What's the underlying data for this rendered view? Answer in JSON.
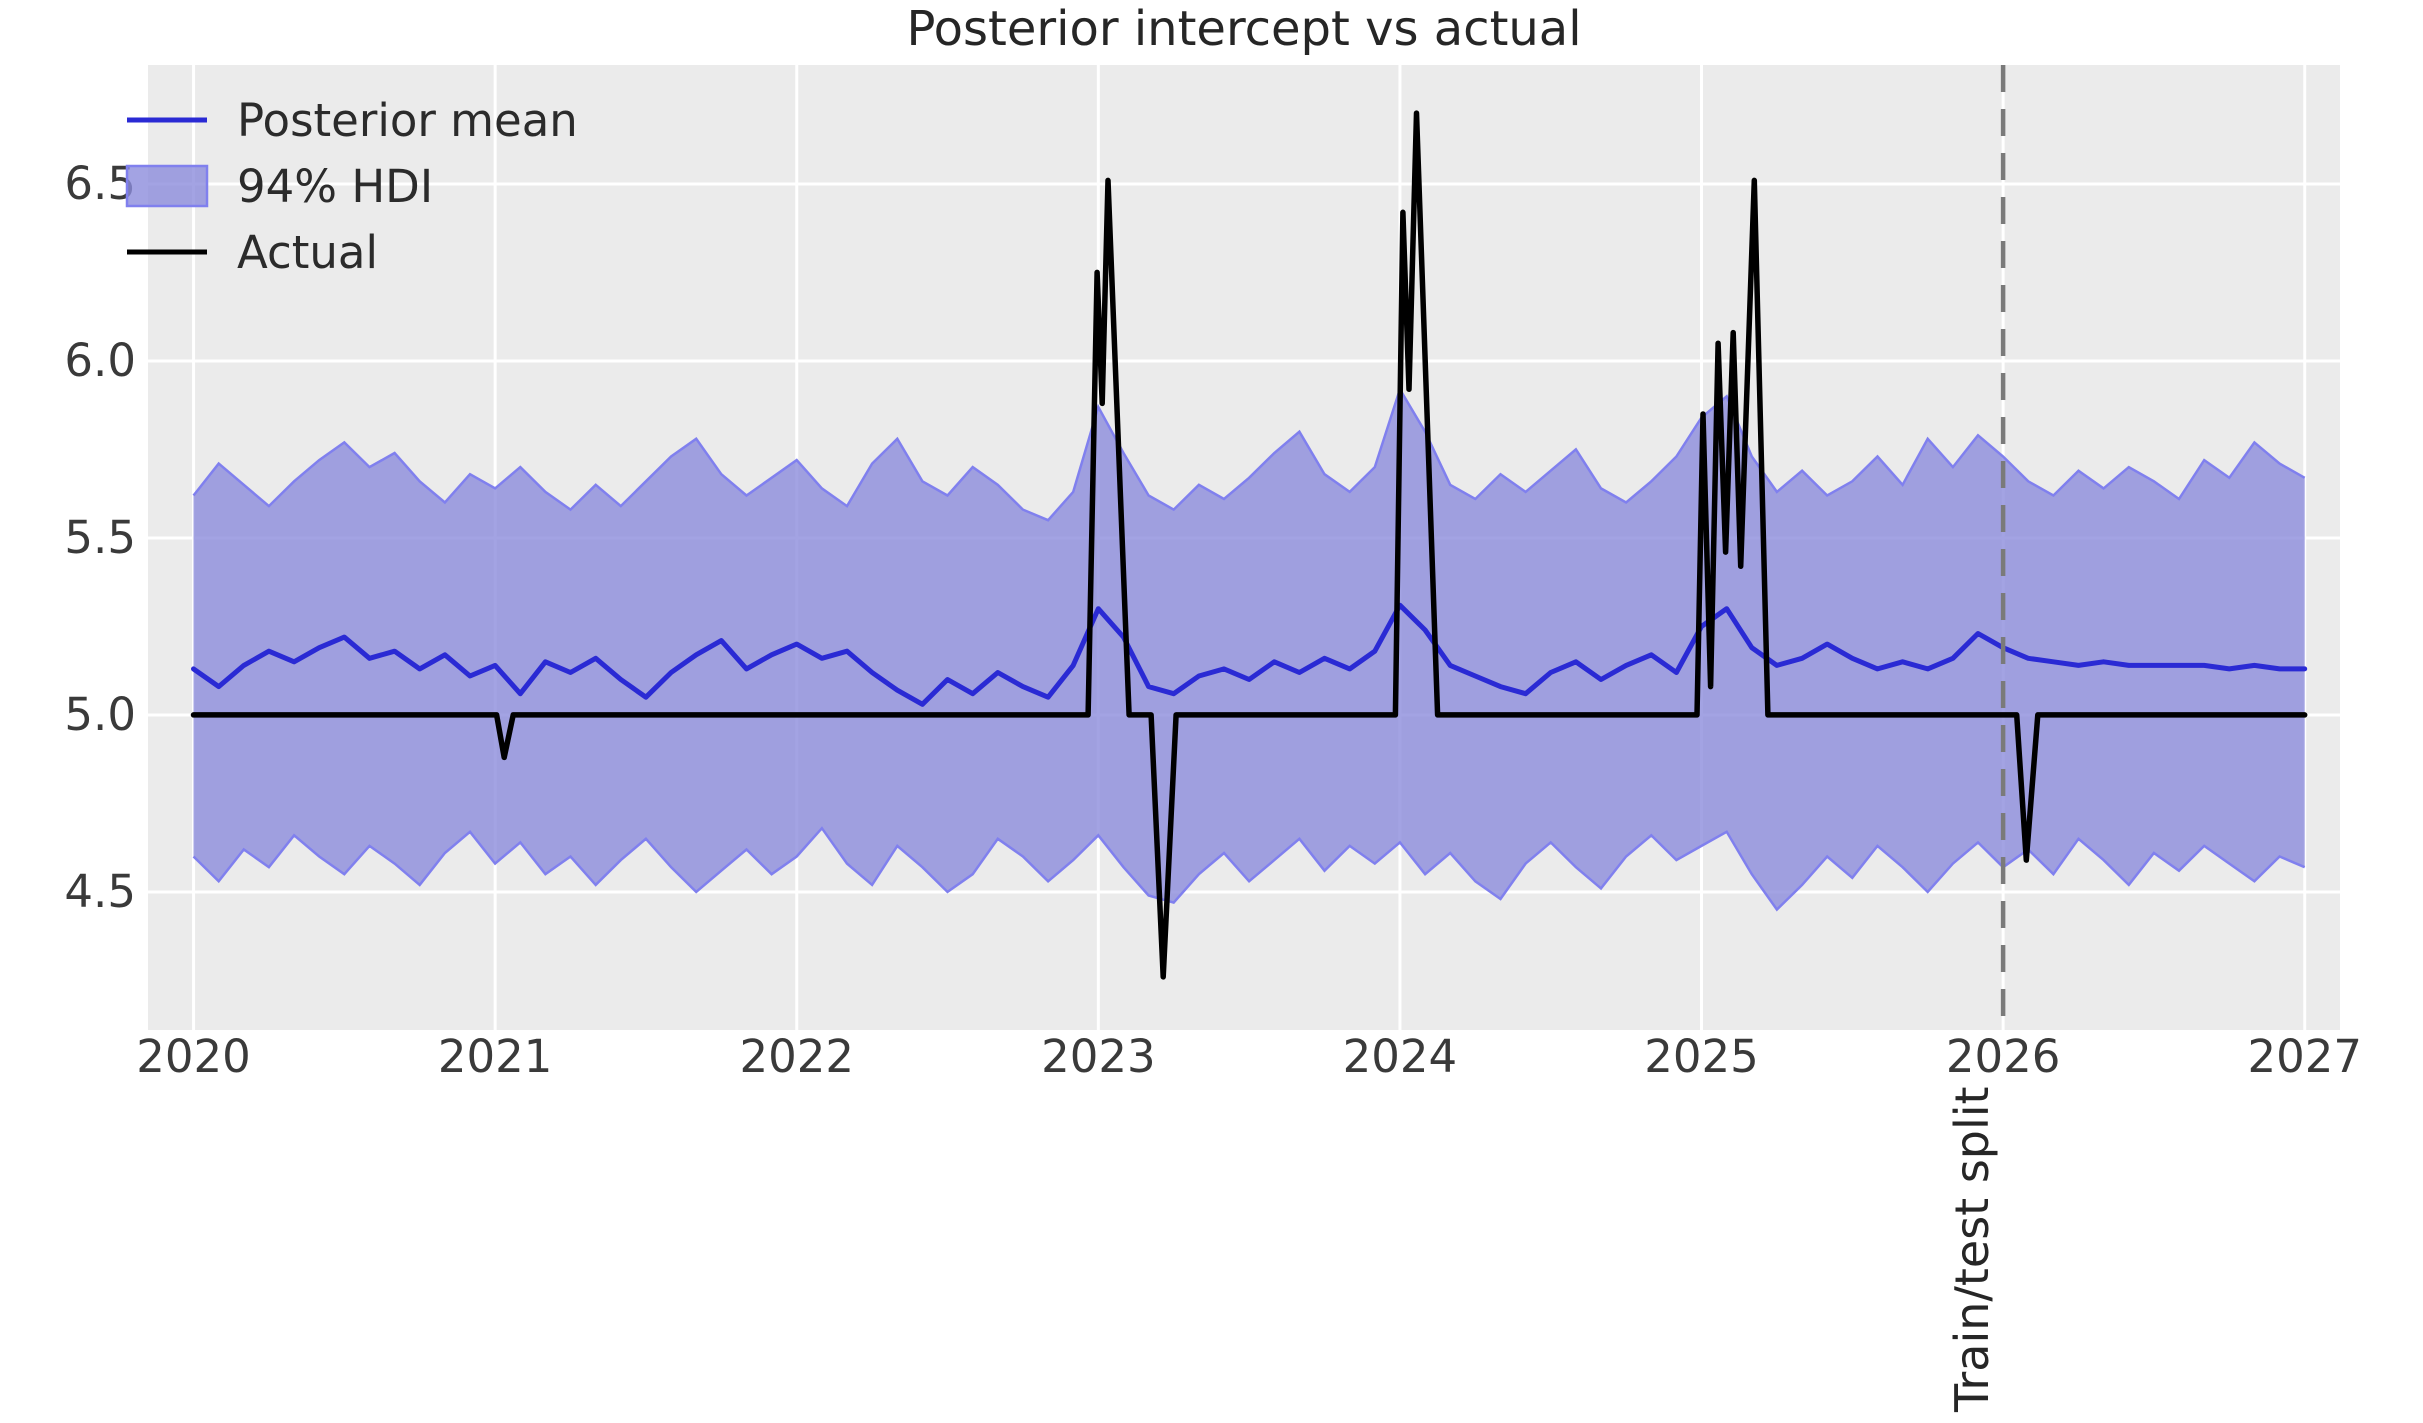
{
  "chart_data": {
    "type": "line",
    "title": "Posterior intercept vs actual",
    "xlabel": "",
    "ylabel": "",
    "grid": true,
    "legend_position": "upper left",
    "xlim": [
      2019.849,
      2027.117
    ],
    "ylim": [
      4.11,
      6.836
    ],
    "x_ticks": [
      {
        "value": 2020,
        "label": "2020"
      },
      {
        "value": 2021,
        "label": "2021"
      },
      {
        "value": 2022,
        "label": "2022"
      },
      {
        "value": 2023,
        "label": "2023"
      },
      {
        "value": 2024,
        "label": "2024"
      },
      {
        "value": 2025,
        "label": "2025"
      },
      {
        "value": 2026,
        "label": "2026"
      },
      {
        "value": 2027,
        "label": "2027"
      }
    ],
    "y_ticks": [
      {
        "value": 4.5,
        "label": "4.5"
      },
      {
        "value": 5.0,
        "label": "5.0"
      },
      {
        "value": 5.5,
        "label": "5.5"
      },
      {
        "value": 6.0,
        "label": "6.0"
      },
      {
        "value": 6.5,
        "label": "6.5"
      }
    ],
    "legend": [
      {
        "label": "Posterior mean",
        "swatch": "line",
        "color_key": "posterior_mean"
      },
      {
        "label": "94% HDI",
        "swatch": "patch",
        "color_key": "hdi_fill"
      },
      {
        "label": "Actual",
        "swatch": "line",
        "color_key": "actual"
      }
    ],
    "split": {
      "x": 2026,
      "label": "Train/test split"
    },
    "sampling": {
      "x_start": 2020.0,
      "x_step_years": 0.0833333,
      "note": "monthly samples 2020-2027"
    },
    "series": [
      {
        "name": "Posterior mean",
        "style": "line",
        "values": [
          5.13,
          5.08,
          5.14,
          5.18,
          5.15,
          5.19,
          5.22,
          5.16,
          5.18,
          5.13,
          5.17,
          5.11,
          5.14,
          5.06,
          5.15,
          5.12,
          5.16,
          5.1,
          5.05,
          5.12,
          5.17,
          5.21,
          5.13,
          5.17,
          5.2,
          5.16,
          5.18,
          5.12,
          5.07,
          5.03,
          5.1,
          5.06,
          5.12,
          5.08,
          5.05,
          5.14,
          5.3,
          5.22,
          5.08,
          5.06,
          5.11,
          5.13,
          5.1,
          5.15,
          5.12,
          5.16,
          5.13,
          5.18,
          5.31,
          5.24,
          5.14,
          5.11,
          5.08,
          5.06,
          5.12,
          5.15,
          5.1,
          5.14,
          5.17,
          5.12,
          5.25,
          5.3,
          5.19,
          5.14,
          5.16,
          5.2,
          5.16,
          5.13,
          5.15,
          5.13,
          5.16,
          5.23,
          5.19,
          5.16,
          5.15,
          5.14,
          5.15,
          5.14,
          5.14,
          5.14,
          5.14,
          5.13,
          5.14,
          5.13,
          5.13
        ]
      },
      {
        "name": "94% HDI upper",
        "style": "band-upper",
        "values": [
          5.62,
          5.71,
          5.65,
          5.59,
          5.66,
          5.72,
          5.77,
          5.7,
          5.74,
          5.66,
          5.6,
          5.68,
          5.64,
          5.7,
          5.63,
          5.58,
          5.65,
          5.59,
          5.66,
          5.73,
          5.78,
          5.68,
          5.62,
          5.67,
          5.72,
          5.64,
          5.59,
          5.71,
          5.78,
          5.66,
          5.62,
          5.7,
          5.65,
          5.58,
          5.55,
          5.63,
          5.87,
          5.74,
          5.62,
          5.58,
          5.65,
          5.61,
          5.67,
          5.74,
          5.8,
          5.68,
          5.63,
          5.7,
          5.92,
          5.8,
          5.65,
          5.61,
          5.68,
          5.63,
          5.69,
          5.75,
          5.64,
          5.6,
          5.66,
          5.73,
          5.84,
          5.9,
          5.73,
          5.63,
          5.69,
          5.62,
          5.66,
          5.73,
          5.65,
          5.78,
          5.7,
          5.79,
          5.73,
          5.66,
          5.62,
          5.69,
          5.64,
          5.7,
          5.66,
          5.61,
          5.72,
          5.67,
          5.77,
          5.71,
          5.67
        ]
      },
      {
        "name": "94% HDI lower",
        "style": "band-lower",
        "values": [
          4.6,
          4.53,
          4.62,
          4.57,
          4.66,
          4.6,
          4.55,
          4.63,
          4.58,
          4.52,
          4.61,
          4.67,
          4.58,
          4.64,
          4.55,
          4.6,
          4.52,
          4.59,
          4.65,
          4.57,
          4.5,
          4.56,
          4.62,
          4.55,
          4.6,
          4.68,
          4.58,
          4.52,
          4.63,
          4.57,
          4.5,
          4.55,
          4.65,
          4.6,
          4.53,
          4.59,
          4.66,
          4.57,
          4.49,
          4.47,
          4.55,
          4.61,
          4.53,
          4.59,
          4.65,
          4.56,
          4.63,
          4.58,
          4.64,
          4.55,
          4.61,
          4.53,
          4.48,
          4.58,
          4.64,
          4.57,
          4.51,
          4.6,
          4.66,
          4.59,
          4.63,
          4.67,
          4.55,
          4.45,
          4.52,
          4.6,
          4.54,
          4.63,
          4.57,
          4.5,
          4.58,
          4.64,
          4.57,
          4.62,
          4.55,
          4.65,
          4.59,
          4.52,
          4.61,
          4.56,
          4.63,
          4.58,
          4.53,
          4.6,
          4.57
        ]
      },
      {
        "name": "Actual",
        "style": "line",
        "keypoints": [
          [
            2020.0,
            5.0
          ],
          [
            2021.005,
            5.0
          ],
          [
            2021.03,
            4.88
          ],
          [
            2021.06,
            5.0
          ],
          [
            2022.966,
            5.0
          ],
          [
            2022.996,
            6.25
          ],
          [
            2023.013,
            5.88
          ],
          [
            2023.032,
            6.51
          ],
          [
            2023.102,
            5.0
          ],
          [
            2023.175,
            5.0
          ],
          [
            2023.215,
            4.26
          ],
          [
            2023.258,
            5.0
          ],
          [
            2023.985,
            5.0
          ],
          [
            2024.01,
            6.42
          ],
          [
            2024.03,
            5.92
          ],
          [
            2024.055,
            6.7
          ],
          [
            2024.125,
            5.0
          ],
          [
            2024.985,
            5.0
          ],
          [
            2025.005,
            5.85
          ],
          [
            2025.03,
            5.08
          ],
          [
            2025.055,
            6.05
          ],
          [
            2025.08,
            5.46
          ],
          [
            2025.105,
            6.08
          ],
          [
            2025.13,
            5.42
          ],
          [
            2025.175,
            6.51
          ],
          [
            2025.22,
            5.0
          ],
          [
            2026.045,
            5.0
          ],
          [
            2026.077,
            4.59
          ],
          [
            2026.115,
            5.0
          ],
          [
            2027.0,
            5.0
          ]
        ]
      }
    ],
    "colors": {
      "posterior_mean": "#2a2ad4",
      "hdi_fill": "#8c8cdc",
      "hdi_edge": "#8080ee",
      "actual": "#000000",
      "split_line": "#7a7a7a",
      "plot_background": "#ebebeb",
      "grid": "#ffffff",
      "tick_text": "#3a3a3a",
      "title_text": "#262626"
    }
  }
}
